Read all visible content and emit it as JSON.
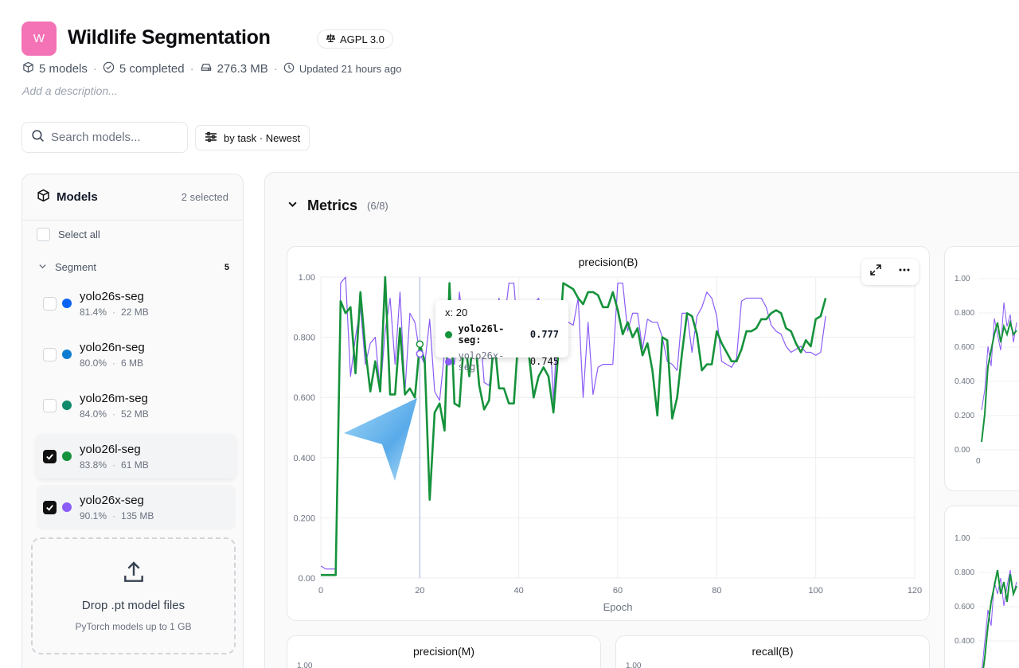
{
  "project": {
    "avatar_letter": "W",
    "title": "Wildlife Segmentation",
    "license": "AGPL 3.0",
    "models_count": "5 models",
    "completed": "5 completed",
    "size": "276.3 MB",
    "updated": "Updated 21 hours ago",
    "description_placeholder": "Add a description..."
  },
  "toolbar": {
    "search_placeholder": "Search models...",
    "sort_label": "by task · Newest"
  },
  "sidebar": {
    "title": "Models",
    "selected_count": "2 selected",
    "select_all": "Select all",
    "group_name": "Segment",
    "group_count": "5",
    "models": [
      {
        "name": "yolo26s-seg",
        "score": "81.4%",
        "size": "22 MB",
        "color": "#0b63f6",
        "checked": false
      },
      {
        "name": "yolo26n-seg",
        "score": "80.0%",
        "size": "6 MB",
        "color": "#0a7ccf",
        "checked": false
      },
      {
        "name": "yolo26m-seg",
        "score": "84.0%",
        "size": "52 MB",
        "color": "#0f8a6b",
        "checked": false
      },
      {
        "name": "yolo26l-seg",
        "score": "83.8%",
        "size": "61 MB",
        "color": "#15923b",
        "checked": true
      },
      {
        "name": "yolo26x-seg",
        "score": "90.1%",
        "size": "135 MB",
        "color": "#8b5cf6",
        "checked": true
      }
    ],
    "drop_title": "Drop .pt model files",
    "drop_sub": "PyTorch models up to 1 GB"
  },
  "metrics": {
    "title": "Metrics",
    "count": "(6/8)",
    "tooltip": {
      "x_label": "x: 20",
      "rows": [
        {
          "name": "yolo26l-seg:",
          "value": "0.777",
          "color": "#15923b"
        },
        {
          "name": "yolo26x-seg:",
          "value": "0.745",
          "color": "#8b5cf6"
        }
      ]
    },
    "secondary_titles": [
      "precision(M)",
      "recall(B)"
    ],
    "secondary_first_tick": "1.00",
    "right_chart_ticks_top": [
      "1.00",
      "0.800",
      "0.600",
      "0.400",
      "0.200",
      "0.00"
    ],
    "right_chart_x0": "0",
    "right_chart_ticks_bottom": [
      "1.00",
      "0.800",
      "0.600",
      "0.400"
    ]
  },
  "chart_data": {
    "type": "line",
    "title": "precision(B)",
    "xlabel": "Epoch",
    "ylabel": "",
    "xlim": [
      0,
      120
    ],
    "ylim": [
      0,
      1
    ],
    "xticks": [
      "0",
      "20",
      "40",
      "60",
      "80",
      "100",
      "120"
    ],
    "yticks": [
      "0.00",
      "0.200",
      "0.400",
      "0.600",
      "0.800",
      "1.00"
    ],
    "grid": true,
    "series": [
      {
        "name": "yolo26l-seg",
        "color": "#15923b",
        "values": [
          0.01,
          0.01,
          0.01,
          0.01,
          0.92,
          0.88,
          0.9,
          0.68,
          0.95,
          0.76,
          0.62,
          0.72,
          0.62,
          1.0,
          0.61,
          0.61,
          0.83,
          0.61,
          0.63,
          0.6,
          0.777,
          0.72,
          0.26,
          0.55,
          0.58,
          0.49,
          0.98,
          0.58,
          0.57,
          0.81,
          0.67,
          0.83,
          0.64,
          0.56,
          0.59,
          0.8,
          0.63,
          0.63,
          0.58,
          0.58,
          0.82,
          0.91,
          0.75,
          0.6,
          0.67,
          0.7,
          0.67,
          0.55,
          0.75,
          0.98,
          0.97,
          0.96,
          0.93,
          0.91,
          0.95,
          0.95,
          0.94,
          0.9,
          0.9,
          0.95,
          0.89,
          0.81,
          0.85,
          0.8,
          0.83,
          0.74,
          0.78,
          0.69,
          0.54,
          0.8,
          0.79,
          0.53,
          0.6,
          0.75,
          0.88,
          0.87,
          0.81,
          0.69,
          0.71,
          0.71,
          0.82,
          0.78,
          0.75,
          0.72,
          0.72,
          0.76,
          0.82,
          0.82,
          0.83,
          0.86,
          0.86,
          0.88,
          0.89,
          0.88,
          0.83,
          0.82,
          0.78,
          0.75,
          0.79,
          0.77,
          0.86,
          0.87,
          0.93
        ],
        "visible_range": "epochs 0-102"
      },
      {
        "name": "yolo26x-seg",
        "color": "#8b5cf6",
        "values": [
          0.04,
          0.03,
          0.03,
          0.03,
          0.98,
          1.0,
          0.67,
          0.8,
          0.9,
          0.71,
          0.78,
          0.8,
          0.62,
          0.82,
          0.93,
          0.71,
          0.95,
          0.62,
          0.88,
          0.85,
          0.745,
          0.71,
          0.86,
          0.62,
          0.59,
          0.75,
          0.79,
          0.71,
          0.95,
          0.81,
          0.77,
          0.88,
          0.87,
          0.65,
          0.64,
          0.75,
          0.93,
          0.84,
          0.98,
          0.98,
          0.77,
          0.84,
          0.85,
          0.91,
          0.93,
          0.86,
          0.91,
          0.59,
          0.89,
          0.79,
          0.85,
          0.84,
          0.93,
          0.6,
          0.85,
          0.61,
          0.7,
          0.71,
          0.71,
          0.71,
          0.98,
          0.98,
          0.82,
          0.88,
          0.88,
          0.76,
          0.86,
          0.85,
          0.85,
          0.8,
          0.72,
          0.71,
          0.69,
          0.88,
          0.88,
          0.75,
          0.87,
          0.9,
          0.95,
          0.93,
          0.87,
          0.72,
          0.71,
          0.7,
          0.73,
          0.92,
          0.93,
          0.93,
          0.93,
          0.93,
          0.9,
          0.84,
          0.82,
          0.81,
          0.77,
          0.75,
          0.76,
          0.77,
          0.75,
          0.75,
          0.74,
          0.75,
          0.87
        ]
      }
    ],
    "crosshair_x": 20
  },
  "colors": {
    "accent_green": "#15923b",
    "accent_purple": "#8b5cf6",
    "avatar_pink": "#f472b6"
  }
}
